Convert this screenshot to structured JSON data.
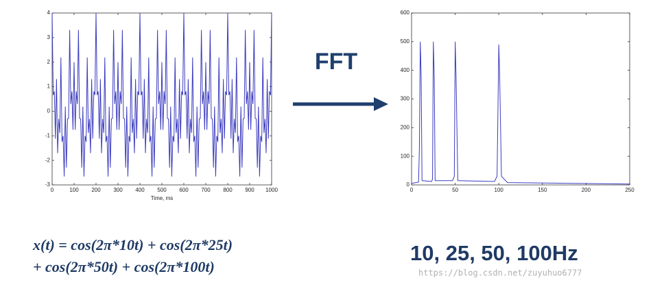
{
  "chart_data": [
    {
      "type": "line",
      "xlabel": "Time, ms",
      "color": "#3b3bbf",
      "xlim": [
        0,
        1000
      ],
      "xticks": [
        0,
        100,
        200,
        300,
        400,
        500,
        600,
        700,
        800,
        900,
        1000
      ],
      "ylim": [
        -3,
        4
      ],
      "yticks": [
        -3,
        -2,
        -1,
        0,
        1,
        2,
        3,
        4
      ],
      "x": [
        0,
        5,
        10,
        15,
        20,
        25,
        30,
        35,
        40,
        45,
        50,
        55,
        60,
        65,
        70,
        75,
        80,
        85,
        90,
        95,
        100,
        105,
        110,
        115,
        120,
        125,
        130,
        135,
        140,
        145,
        150,
        155,
        160,
        165,
        170,
        175,
        180,
        185,
        190,
        195,
        200,
        205,
        210,
        215,
        220,
        225,
        230,
        235,
        240,
        245,
        250,
        255,
        260,
        265,
        270,
        275,
        280,
        285,
        290,
        295,
        300,
        305,
        310,
        315,
        320,
        325,
        330,
        335,
        340,
        345,
        350,
        355,
        360,
        365,
        370,
        375,
        380,
        385,
        390,
        395,
        400,
        405,
        410,
        415,
        420,
        425,
        430,
        435,
        440,
        445,
        450,
        455,
        460,
        465,
        470,
        475,
        480,
        485,
        490,
        495,
        500,
        505,
        510,
        515,
        520,
        525,
        530,
        535,
        540,
        545,
        550,
        555,
        560,
        565,
        570,
        575,
        580,
        585,
        590,
        595,
        600,
        605,
        610,
        615,
        620,
        625,
        630,
        635,
        640,
        645,
        650,
        655,
        660,
        665,
        670,
        675,
        680,
        685,
        690,
        695,
        700,
        705,
        710,
        715,
        720,
        725,
        730,
        735,
        740,
        745,
        750,
        755,
        760,
        765,
        770,
        775,
        780,
        785,
        790,
        795,
        800,
        805,
        810,
        815,
        820,
        825,
        830,
        835,
        840,
        845,
        850,
        855,
        860,
        865,
        870,
        875,
        880,
        885,
        890,
        895,
        900,
        905,
        910,
        915,
        920,
        925,
        930,
        935,
        940,
        945,
        950,
        955,
        960,
        965,
        970,
        975,
        980,
        985,
        990,
        995,
        1000
      ],
      "values": [
        4,
        0.658,
        0.809,
        -1.119,
        1.309,
        -1.707,
        -0.309,
        -0.881,
        2.191,
        -1.244,
        -1,
        -2.658,
        0.191,
        -2.295,
        -0.309,
        -0.293,
        3.309,
        0.295,
        0.809,
        -0.756,
        2,
        -0.756,
        0.809,
        0.295,
        3.309,
        -0.293,
        -0.309,
        -2.295,
        0.191,
        -2.658,
        -1,
        -1.244,
        2.191,
        -0.881,
        -0.309,
        -1.707,
        1.309,
        -1.119,
        0.809,
        0.658,
        4,
        0.658,
        0.809,
        -1.119,
        1.309,
        -1.707,
        -0.309,
        -0.881,
        2.191,
        -1.244,
        -1,
        -2.658,
        0.191,
        -2.295,
        -0.309,
        -0.293,
        3.309,
        0.295,
        0.809,
        -0.756,
        2,
        -0.756,
        0.809,
        0.295,
        3.309,
        -0.293,
        -0.309,
        -2.295,
        0.191,
        -2.658,
        -1,
        -1.244,
        2.191,
        -0.881,
        -0.309,
        -1.707,
        1.309,
        -1.119,
        0.809,
        0.658,
        4,
        0.658,
        0.809,
        -1.119,
        1.309,
        -1.707,
        -0.309,
        -0.881,
        2.191,
        -1.244,
        -1,
        -2.658,
        0.191,
        -2.295,
        -0.309,
        -0.293,
        3.309,
        0.295,
        0.809,
        -0.756,
        2,
        -0.756,
        0.809,
        0.295,
        3.309,
        -0.293,
        -0.309,
        -2.295,
        0.191,
        -2.658,
        -1,
        -1.244,
        2.191,
        -0.881,
        -0.309,
        -1.707,
        1.309,
        -1.119,
        0.809,
        0.658,
        4,
        0.658,
        0.809,
        -1.119,
        1.309,
        -1.707,
        -0.309,
        -0.881,
        2.191,
        -1.244,
        -1,
        -2.658,
        0.191,
        -2.295,
        -0.309,
        -0.293,
        3.309,
        0.295,
        0.809,
        -0.756,
        2,
        -0.756,
        0.809,
        0.295,
        3.309,
        -0.293,
        -0.309,
        -2.295,
        0.191,
        -2.658,
        -1,
        -1.244,
        2.191,
        -0.881,
        -0.309,
        -1.707,
        1.309,
        -1.119,
        0.809,
        0.658,
        4,
        0.658,
        0.809,
        -1.119,
        1.309,
        -1.707,
        -0.309,
        -0.881,
        2.191,
        -1.244,
        -1,
        -2.658,
        0.191,
        -2.295,
        -0.309,
        -0.293,
        3.309,
        0.295,
        0.809,
        -0.756,
        2,
        -0.756,
        0.809,
        0.295,
        3.309,
        -0.293,
        -0.309,
        -2.295,
        0.191,
        -2.658,
        -1,
        -1.244,
        2.191,
        -0.881,
        -0.309,
        -1.707,
        1.309,
        -1.119,
        0.809,
        0.658,
        4
      ]
    },
    {
      "type": "line",
      "color": "#3b3bbf",
      "xlim": [
        0,
        250
      ],
      "xticks": [
        0,
        50,
        100,
        150,
        200,
        250
      ],
      "ylim": [
        0,
        600
      ],
      "yticks": [
        0,
        100,
        200,
        300,
        400,
        500,
        600
      ],
      "x": [
        0,
        8,
        9,
        10,
        11,
        12,
        23,
        24,
        25,
        26,
        27,
        47,
        49,
        50,
        51,
        53,
        95,
        98,
        100,
        101,
        103,
        110,
        250
      ],
      "values": [
        5,
        10,
        130,
        500,
        380,
        15,
        12,
        20,
        500,
        380,
        15,
        15,
        30,
        500,
        380,
        15,
        12,
        30,
        490,
        380,
        30,
        8,
        3
      ]
    }
  ],
  "arrow_label": "FFT",
  "formula": [
    "x(t) = cos(2π*10t) + cos(2π*25t)",
    "+ cos(2π*50t) + cos(2π*100t)"
  ],
  "result": "10, 25, 50, 100Hz",
  "watermark": "https://blog.csdn.net/zuyuhuo6777"
}
